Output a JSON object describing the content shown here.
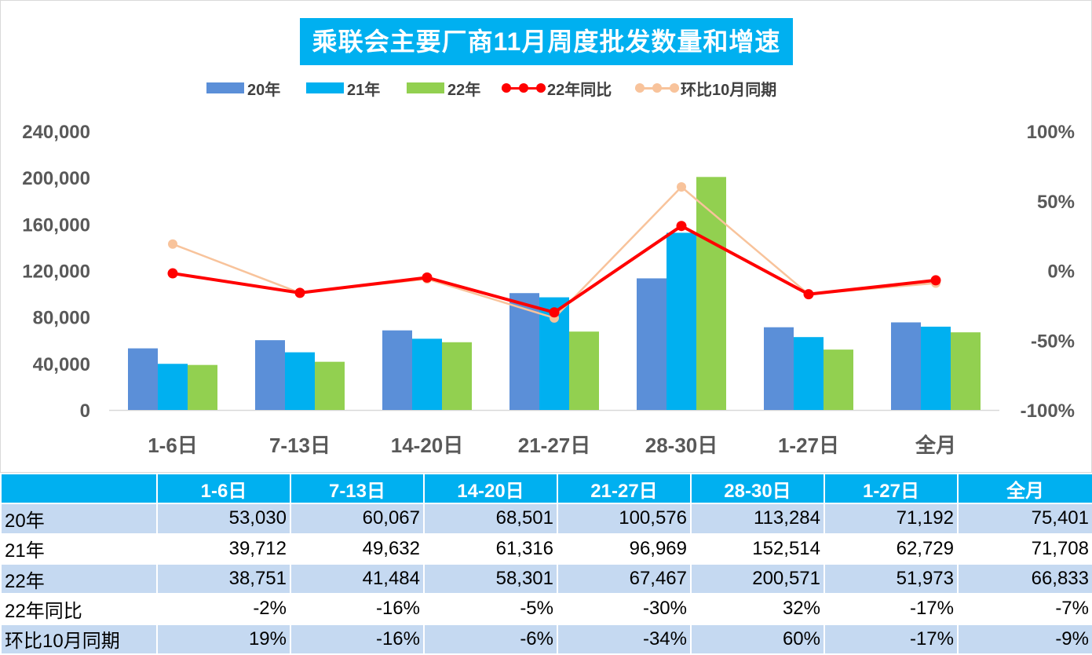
{
  "chart_data": {
    "type": "bar",
    "title": "乘联会主要厂商11月周度批发数量和增速",
    "categories": [
      "1-6日",
      "7-13日",
      "14-20日",
      "21-27日",
      "28-30日",
      "1-27日",
      "全月"
    ],
    "series": [
      {
        "name": "20年",
        "kind": "bar",
        "color": "#5b8fd8",
        "values": [
          53030,
          60067,
          68501,
          100576,
          113284,
          71192,
          75401
        ]
      },
      {
        "name": "21年",
        "kind": "bar",
        "color": "#00b0f0",
        "values": [
          39712,
          49632,
          61316,
          96969,
          152514,
          62729,
          71708
        ]
      },
      {
        "name": "22年",
        "kind": "bar",
        "color": "#92d050",
        "values": [
          38751,
          41484,
          58301,
          67467,
          200571,
          51973,
          66833
        ]
      },
      {
        "name": "22年同比",
        "kind": "line",
        "axis": "right",
        "color": "#ff0000",
        "values": [
          -2,
          -16,
          -5,
          -30,
          32,
          -17,
          -7
        ]
      },
      {
        "name": "环比10月同期",
        "kind": "line",
        "axis": "right",
        "color": "#f8c39b",
        "values": [
          19,
          -16,
          -6,
          -34,
          60,
          -17,
          -9
        ]
      }
    ],
    "ylim": [
      0,
      240000
    ],
    "y_ticks": [
      "0",
      "40,000",
      "80,000",
      "120,000",
      "160,000",
      "200,000",
      "240,000"
    ],
    "y2lim": [
      -100,
      100
    ],
    "y2_ticks": [
      "-100%",
      "-50%",
      "0%",
      "50%",
      "100%"
    ],
    "legend_position": "top",
    "grid": false
  },
  "table": {
    "header": [
      "",
      "1-6日",
      "7-13日",
      "14-20日",
      "21-27日",
      "28-30日",
      "1-27日",
      "全月"
    ],
    "rows": [
      {
        "label": "20年",
        "cells": [
          "53,030",
          "60,067",
          "68,501",
          "100,576",
          "113,284",
          "71,192",
          "75,401"
        ]
      },
      {
        "label": "21年",
        "cells": [
          "39,712",
          "49,632",
          "61,316",
          "96,969",
          "152,514",
          "62,729",
          "71,708"
        ]
      },
      {
        "label": "22年",
        "cells": [
          "38,751",
          "41,484",
          "58,301",
          "67,467",
          "200,571",
          "51,973",
          "66,833"
        ]
      },
      {
        "label": "22年同比",
        "cells": [
          "-2%",
          "-16%",
          "-5%",
          "-30%",
          "32%",
          "-17%",
          "-7%"
        ]
      },
      {
        "label": "环比10月同期",
        "cells": [
          "19%",
          "-16%",
          "-6%",
          "-34%",
          "60%",
          "-17%",
          "-9%"
        ]
      }
    ]
  }
}
